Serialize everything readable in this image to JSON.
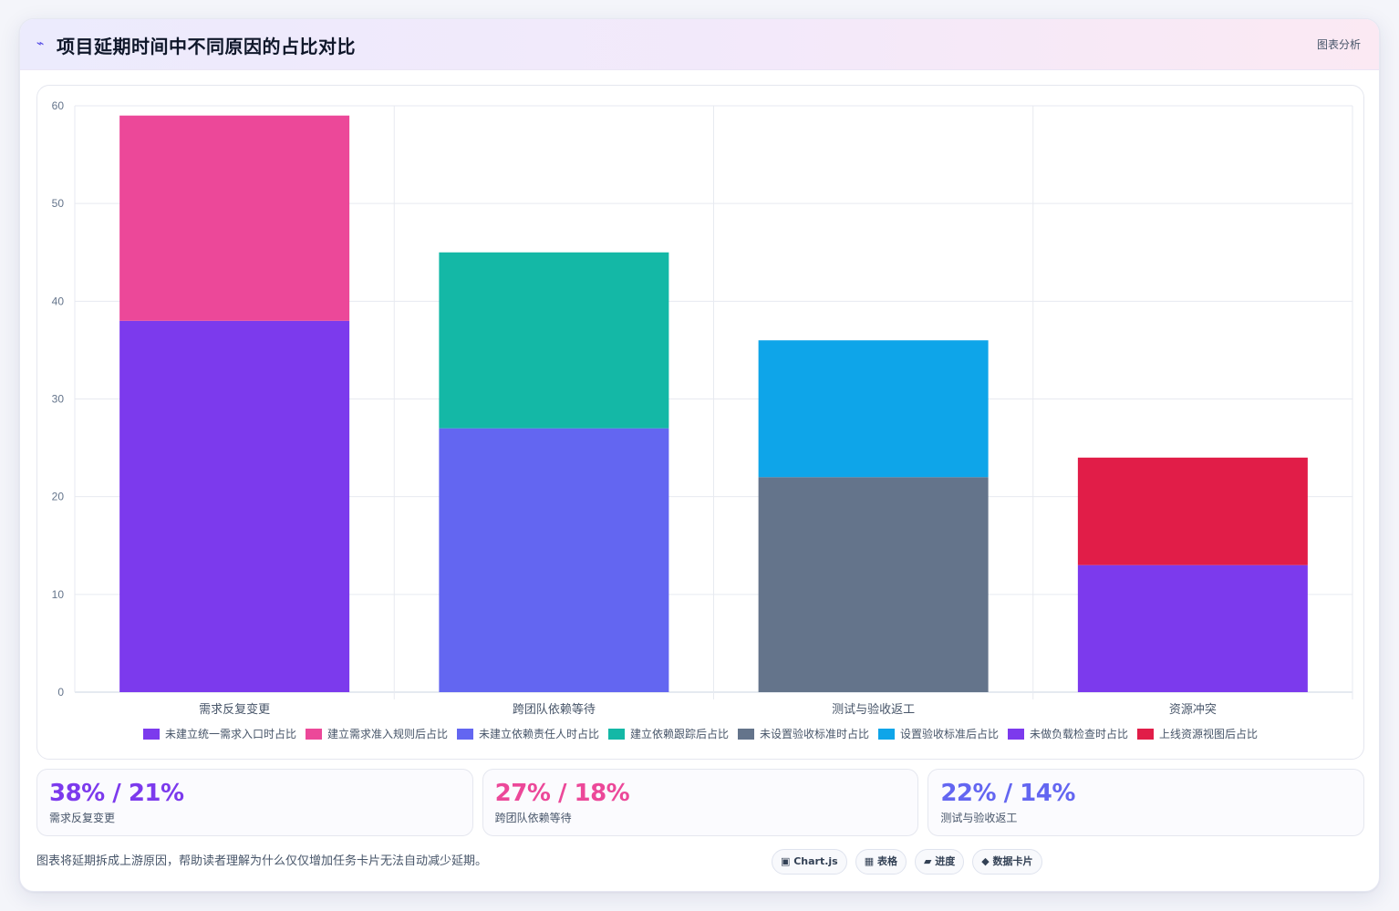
{
  "header": {
    "icon": "lightning-icon",
    "title": "项目延期时间中不同原因的占比对比",
    "action_label": "图表分析"
  },
  "chart_data": {
    "type": "bar",
    "stacked": true,
    "categories": [
      "需求反复变更",
      "跨团队依赖等待",
      "测试与验收返工",
      "资源冲突"
    ],
    "ylim": [
      0,
      60
    ],
    "yticks": [
      0,
      10,
      20,
      30,
      40,
      50,
      60
    ],
    "grid": true,
    "legend_position": "bottom",
    "series": [
      {
        "name": "未建立统一需求入口时占比",
        "color": "#7c3aed",
        "values": [
          38,
          null,
          null,
          null
        ]
      },
      {
        "name": "建立需求准入规则后占比",
        "color": "#ec4899",
        "values": [
          21,
          null,
          null,
          null
        ]
      },
      {
        "name": "未建立依赖责任人时占比",
        "color": "#6366f1",
        "values": [
          null,
          27,
          null,
          null
        ]
      },
      {
        "name": "建立依赖跟踪后占比",
        "color": "#14b8a6",
        "values": [
          null,
          18,
          null,
          null
        ]
      },
      {
        "name": "未设置验收标准时占比",
        "color": "#64748b",
        "values": [
          null,
          null,
          22,
          null
        ]
      },
      {
        "name": "设置验收标准后占比",
        "color": "#0ea5e9",
        "values": [
          null,
          null,
          14,
          null
        ]
      },
      {
        "name": "未做负载检查时占比",
        "color": "#7c3aed",
        "values": [
          null,
          null,
          null,
          13
        ]
      },
      {
        "name": "上线资源视图后占比",
        "color": "#e11d48",
        "values": [
          null,
          null,
          null,
          11
        ]
      }
    ]
  },
  "stats": [
    {
      "value": "38% / 21%",
      "label": "需求反复变更",
      "color": "#7c3aed"
    },
    {
      "value": "27% / 18%",
      "label": "跨团队依赖等待",
      "color": "#ec4899"
    },
    {
      "value": "22% / 14%",
      "label": "测试与验收返工",
      "color": "#6366f1"
    }
  ],
  "footer": {
    "description": "图表将延期拆成上游原因，帮助读者理解为什么仅仅增加任务卡片无法自动减少延期。",
    "chips": [
      "▣ Chart.js",
      "▦ 表格",
      "▰ 进度",
      "◆ 数据卡片"
    ]
  }
}
